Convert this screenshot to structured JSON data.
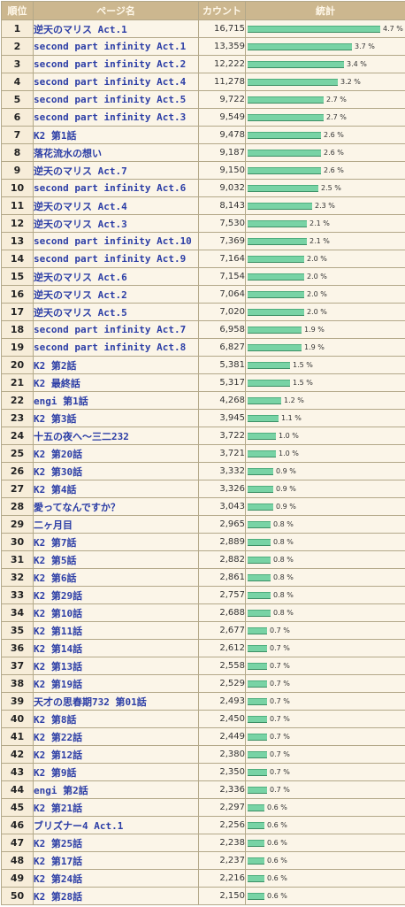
{
  "headers": {
    "rank": "順位",
    "page": "ページ名",
    "count": "カウント",
    "stats": "統計"
  },
  "rows": [
    {
      "rank": "1",
      "name": "逆天のマリス Act.1",
      "count": "16,715",
      "pct": "4.7 %",
      "v": 4.7
    },
    {
      "rank": "2",
      "name": "second part infinity Act.1",
      "count": "13,359",
      "pct": "3.7 %",
      "v": 3.7
    },
    {
      "rank": "3",
      "name": "second part infinity Act.2",
      "count": "12,222",
      "pct": "3.4 %",
      "v": 3.4
    },
    {
      "rank": "4",
      "name": "second part infinity Act.4",
      "count": "11,278",
      "pct": "3.2 %",
      "v": 3.2
    },
    {
      "rank": "5",
      "name": "second part infinity Act.5",
      "count": "9,722",
      "pct": "2.7 %",
      "v": 2.7
    },
    {
      "rank": "6",
      "name": "second part infinity Act.3",
      "count": "9,549",
      "pct": "2.7 %",
      "v": 2.7
    },
    {
      "rank": "7",
      "name": "K2 第1話",
      "count": "9,478",
      "pct": "2.6 %",
      "v": 2.6
    },
    {
      "rank": "8",
      "name": "落花流水の想い",
      "count": "9,187",
      "pct": "2.6 %",
      "v": 2.6
    },
    {
      "rank": "9",
      "name": "逆天のマリス Act.7",
      "count": "9,150",
      "pct": "2.6 %",
      "v": 2.6
    },
    {
      "rank": "10",
      "name": "second part infinity Act.6",
      "count": "9,032",
      "pct": "2.5 %",
      "v": 2.5
    },
    {
      "rank": "11",
      "name": "逆天のマリス Act.4",
      "count": "8,143",
      "pct": "2.3 %",
      "v": 2.3
    },
    {
      "rank": "12",
      "name": "逆天のマリス Act.3",
      "count": "7,530",
      "pct": "2.1 %",
      "v": 2.1
    },
    {
      "rank": "13",
      "name": "second part infinity Act.10",
      "count": "7,369",
      "pct": "2.1 %",
      "v": 2.1
    },
    {
      "rank": "14",
      "name": "second part infinity Act.9",
      "count": "7,164",
      "pct": "2.0 %",
      "v": 2.0
    },
    {
      "rank": "15",
      "name": "逆天のマリス Act.6",
      "count": "7,154",
      "pct": "2.0 %",
      "v": 2.0
    },
    {
      "rank": "16",
      "name": "逆天のマリス Act.2",
      "count": "7,064",
      "pct": "2.0 %",
      "v": 2.0
    },
    {
      "rank": "17",
      "name": "逆天のマリス Act.5",
      "count": "7,020",
      "pct": "2.0 %",
      "v": 2.0
    },
    {
      "rank": "18",
      "name": "second part infinity Act.7",
      "count": "6,958",
      "pct": "1.9 %",
      "v": 1.9
    },
    {
      "rank": "19",
      "name": "second part infinity Act.8",
      "count": "6,827",
      "pct": "1.9 %",
      "v": 1.9
    },
    {
      "rank": "20",
      "name": "K2 第2話",
      "count": "5,381",
      "pct": "1.5 %",
      "v": 1.5
    },
    {
      "rank": "21",
      "name": "K2 最終話",
      "count": "5,317",
      "pct": "1.5 %",
      "v": 1.5
    },
    {
      "rank": "22",
      "name": "engi 第1話",
      "count": "4,268",
      "pct": "1.2 %",
      "v": 1.2
    },
    {
      "rank": "23",
      "name": "K2 第3話",
      "count": "3,945",
      "pct": "1.1 %",
      "v": 1.1
    },
    {
      "rank": "24",
      "name": "十五の夜へ～三二232",
      "count": "3,722",
      "pct": "1.0 %",
      "v": 1.0
    },
    {
      "rank": "25",
      "name": "K2 第20話",
      "count": "3,721",
      "pct": "1.0 %",
      "v": 1.0
    },
    {
      "rank": "26",
      "name": "K2 第30話",
      "count": "3,332",
      "pct": "0.9 %",
      "v": 0.9
    },
    {
      "rank": "27",
      "name": "K2 第4話",
      "count": "3,326",
      "pct": "0.9 %",
      "v": 0.9
    },
    {
      "rank": "28",
      "name": "愛ってなんですか？",
      "count": "3,043",
      "pct": "0.9 %",
      "v": 0.9
    },
    {
      "rank": "29",
      "name": "二ヶ月目",
      "count": "2,965",
      "pct": "0.8 %",
      "v": 0.8
    },
    {
      "rank": "30",
      "name": "K2 第7話",
      "count": "2,889",
      "pct": "0.8 %",
      "v": 0.8
    },
    {
      "rank": "31",
      "name": "K2 第5話",
      "count": "2,882",
      "pct": "0.8 %",
      "v": 0.8
    },
    {
      "rank": "32",
      "name": "K2 第6話",
      "count": "2,861",
      "pct": "0.8 %",
      "v": 0.8
    },
    {
      "rank": "33",
      "name": "K2 第29話",
      "count": "2,757",
      "pct": "0.8 %",
      "v": 0.8
    },
    {
      "rank": "34",
      "name": "K2 第10話",
      "count": "2,688",
      "pct": "0.8 %",
      "v": 0.8
    },
    {
      "rank": "35",
      "name": "K2 第11話",
      "count": "2,677",
      "pct": "0.7 %",
      "v": 0.7
    },
    {
      "rank": "36",
      "name": "K2 第14話",
      "count": "2,612",
      "pct": "0.7 %",
      "v": 0.7
    },
    {
      "rank": "37",
      "name": "K2 第13話",
      "count": "2,558",
      "pct": "0.7 %",
      "v": 0.7
    },
    {
      "rank": "38",
      "name": "K2 第19話",
      "count": "2,529",
      "pct": "0.7 %",
      "v": 0.7
    },
    {
      "rank": "39",
      "name": "天才の思春期732 第01話",
      "count": "2,493",
      "pct": "0.7 %",
      "v": 0.7
    },
    {
      "rank": "40",
      "name": "K2 第8話",
      "count": "2,450",
      "pct": "0.7 %",
      "v": 0.7
    },
    {
      "rank": "41",
      "name": "K2 第22話",
      "count": "2,449",
      "pct": "0.7 %",
      "v": 0.7
    },
    {
      "rank": "42",
      "name": "K2 第12話",
      "count": "2,380",
      "pct": "0.7 %",
      "v": 0.7
    },
    {
      "rank": "43",
      "name": "K2 第9話",
      "count": "2,350",
      "pct": "0.7 %",
      "v": 0.7
    },
    {
      "rank": "44",
      "name": "engi 第2話",
      "count": "2,336",
      "pct": "0.7 %",
      "v": 0.7
    },
    {
      "rank": "45",
      "name": "K2 第21話",
      "count": "2,297",
      "pct": "0.6 %",
      "v": 0.6
    },
    {
      "rank": "46",
      "name": "ブリズナー4 Act.1",
      "count": "2,256",
      "pct": "0.6 %",
      "v": 0.6
    },
    {
      "rank": "47",
      "name": "K2 第25話",
      "count": "2,238",
      "pct": "0.6 %",
      "v": 0.6
    },
    {
      "rank": "48",
      "name": "K2 第17話",
      "count": "2,237",
      "pct": "0.6 %",
      "v": 0.6
    },
    {
      "rank": "49",
      "name": "K2 第24話",
      "count": "2,216",
      "pct": "0.6 %",
      "v": 0.6
    },
    {
      "rank": "50",
      "name": "K2 第28話",
      "count": "2,150",
      "pct": "0.6 %",
      "v": 0.6
    }
  ],
  "colors": {
    "bar": "#78d3a5",
    "link": "#2c3ea6",
    "header": "#ccb78f",
    "grid": "#b3a889"
  }
}
